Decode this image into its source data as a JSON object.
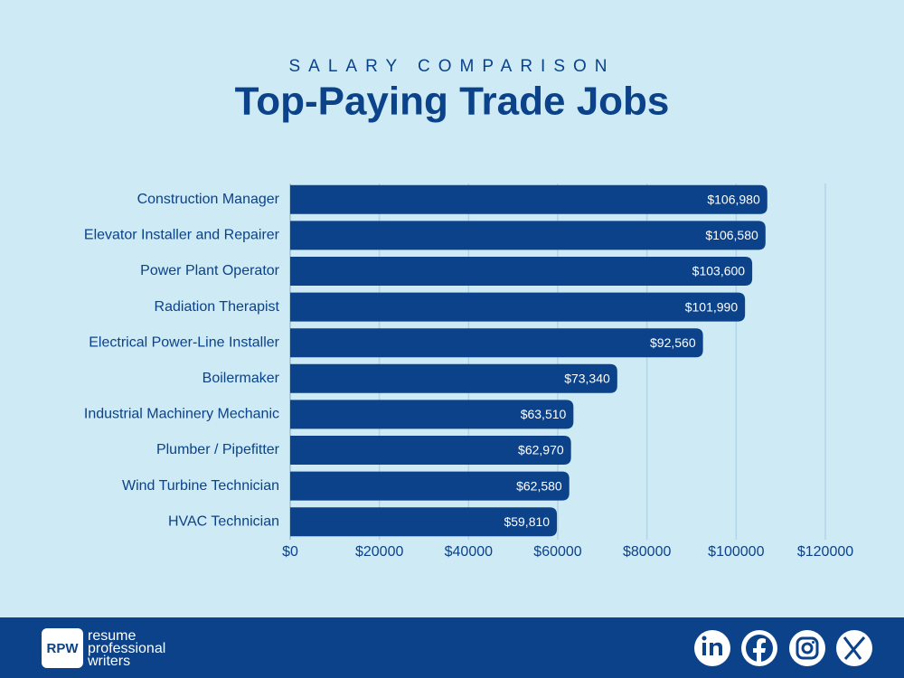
{
  "chart_data": {
    "type": "bar",
    "orientation": "horizontal",
    "subtitle": "SALARY COMPARISON",
    "title": "Top-Paying Trade Jobs",
    "categories": [
      "Construction Manager",
      "Elevator Installer and Repairer",
      "Power Plant Operator",
      "Radiation Therapist",
      "Electrical Power-Line Installer",
      "Boilermaker",
      "Industrial Machinery Mechanic",
      "Plumber / Pipefitter",
      "Wind Turbine Technician",
      "HVAC Technician"
    ],
    "values": [
      106980,
      106580,
      103600,
      101990,
      92560,
      73340,
      63510,
      62970,
      62580,
      59810
    ],
    "value_labels": [
      "$106,980",
      "$106,580",
      "$103,600",
      "$101,990",
      "$92,560",
      "$73,340",
      "$63,510",
      "$62,970",
      "$62,580",
      "$59,810"
    ],
    "color": "#0b4289",
    "xlim": [
      0,
      120000
    ],
    "xticks": [
      {
        "value": 0,
        "label": "$0"
      },
      {
        "value": 20000,
        "label": "$20000"
      },
      {
        "value": 40000,
        "label": "$40000"
      },
      {
        "value": 60000,
        "label": "$60000"
      },
      {
        "value": 80000,
        "label": "$80000"
      },
      {
        "value": 100000,
        "label": "$100000"
      },
      {
        "value": 120000,
        "label": "$120000"
      }
    ],
    "grid": true
  },
  "footer": {
    "logo": "RPW",
    "brand": [
      "resume",
      "professional",
      "writers"
    ]
  }
}
